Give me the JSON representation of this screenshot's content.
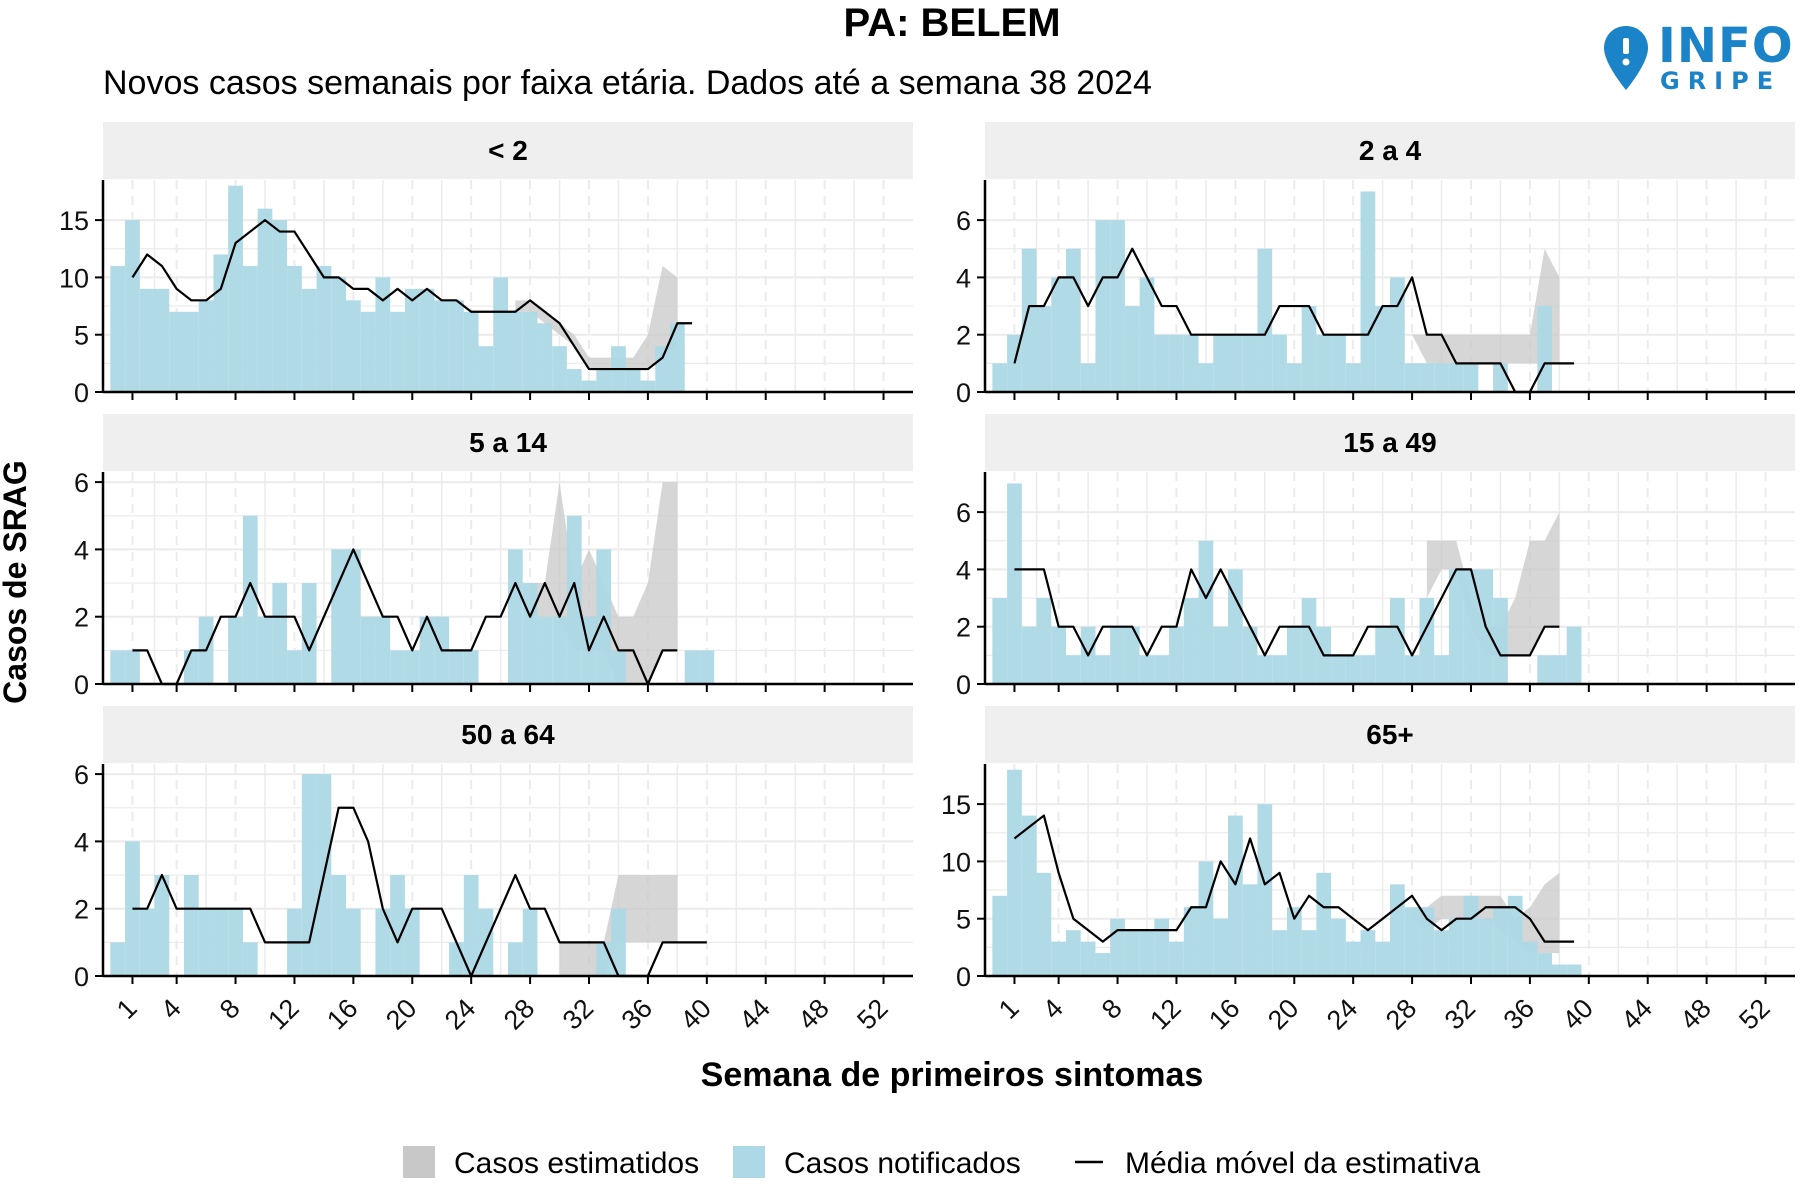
{
  "title": "PA: BELEM",
  "subtitle": "Novos casos semanais por faixa etária. Dados até a semana 38 2024",
  "logo": {
    "main": "INFO",
    "sub": "GRIPE",
    "color": "#1b84c9",
    "icon": "map-pin-icon"
  },
  "colors": {
    "notified": "#add8e6",
    "estimated": "#c8c8c8",
    "line": "#000000",
    "strip": "#efefef",
    "grid": "#ebebeb"
  },
  "chart_data": {
    "type": "bar",
    "xlabel": "Semana de primeiros sintomas",
    "ylabel": "Casos de SRAG",
    "xlim": [
      -1,
      54
    ],
    "x_ticks": [
      1,
      4,
      8,
      12,
      16,
      20,
      24,
      28,
      32,
      36,
      40,
      44,
      48,
      52
    ],
    "legend": {
      "position": "bottom",
      "items": [
        {
          "key": "estimated",
          "label": "Casos estimatidos"
        },
        {
          "key": "notified",
          "label": "Casos notificados"
        },
        {
          "key": "moving_average",
          "label": "Média móvel da estimativa"
        }
      ]
    },
    "panels": [
      {
        "label": "< 2",
        "ylim": [
          0,
          18.5
        ],
        "y_ticks": [
          0,
          5,
          10,
          15
        ],
        "notified": [
          11,
          15,
          9,
          9,
          7,
          7,
          8,
          12,
          18,
          11,
          16,
          15,
          11,
          9,
          11,
          10,
          8,
          7,
          10,
          7,
          9,
          9,
          8,
          8,
          7,
          4,
          10,
          7,
          7,
          6,
          4,
          2,
          1,
          2,
          4,
          2,
          1,
          4,
          6,
          0
        ],
        "moving_average": [
          10,
          12,
          11,
          9,
          8,
          8,
          9,
          13,
          14,
          15,
          14,
          14,
          12,
          10,
          10,
          9,
          9,
          8,
          9,
          8,
          9,
          8,
          8,
          7,
          7,
          7,
          7,
          8,
          7,
          6,
          4,
          2,
          2,
          2,
          2,
          2,
          3,
          6,
          6
        ],
        "estimate_band": {
          "weeks": [
            27,
            28,
            29,
            30,
            31,
            32,
            33,
            34,
            35,
            36,
            37,
            38
          ],
          "lower": [
            7,
            7,
            6,
            5,
            4,
            2,
            2,
            2,
            2,
            2,
            3,
            4
          ],
          "upper": [
            8,
            8,
            7,
            6,
            5,
            3,
            3,
            3,
            3,
            5,
            11,
            10
          ]
        }
      },
      {
        "label": "2 a 4",
        "ylim": [
          0,
          7.4
        ],
        "y_ticks": [
          0,
          2,
          4,
          6
        ],
        "notified": [
          1,
          2,
          5,
          3,
          4,
          5,
          1,
          6,
          6,
          3,
          4,
          2,
          2,
          2,
          1,
          2,
          2,
          2,
          5,
          2,
          1,
          3,
          2,
          2,
          1,
          7,
          3,
          4,
          1,
          1,
          1,
          1,
          1,
          0,
          1,
          0,
          0,
          3,
          0
        ],
        "moving_average": [
          1,
          3,
          3,
          4,
          4,
          3,
          4,
          4,
          5,
          4,
          3,
          3,
          2,
          2,
          2,
          2,
          2,
          2,
          3,
          3,
          3,
          2,
          2,
          2,
          2,
          3,
          3,
          4,
          2,
          2,
          1,
          1,
          1,
          1,
          0,
          0,
          1,
          1,
          1
        ],
        "estimate_band": {
          "weeks": [
            28,
            29,
            30,
            31,
            32,
            33,
            34,
            35,
            36,
            37,
            38
          ],
          "lower": [
            2,
            1,
            1,
            1,
            1,
            1,
            1,
            1,
            1,
            1,
            1
          ],
          "upper": [
            2,
            2,
            2,
            2,
            2,
            2,
            2,
            2,
            2,
            5,
            4
          ]
        }
      },
      {
        "label": "5 a 14",
        "ylim": [
          0,
          6.3
        ],
        "y_ticks": [
          0,
          2,
          4,
          6
        ],
        "notified": [
          1,
          1,
          0,
          0,
          0,
          1,
          2,
          0,
          2,
          5,
          2,
          3,
          1,
          3,
          0,
          4,
          4,
          2,
          2,
          1,
          1,
          2,
          2,
          1,
          1,
          0,
          0,
          4,
          3,
          2,
          2,
          5,
          2,
          4,
          1,
          0,
          0,
          0,
          0,
          1,
          1
        ],
        "moving_average": [
          1,
          1,
          0,
          0,
          1,
          1,
          2,
          2,
          3,
          2,
          2,
          2,
          1,
          2,
          3,
          4,
          3,
          2,
          2,
          1,
          2,
          1,
          1,
          1,
          2,
          2,
          3,
          2,
          3,
          2,
          3,
          1,
          2,
          1,
          1,
          0,
          1,
          1
        ],
        "estimate_band": {
          "weeks": [
            28,
            29,
            30,
            31,
            32,
            33,
            34,
            35,
            36,
            37,
            38
          ],
          "lower": [
            2,
            2,
            2,
            1,
            1,
            1,
            0,
            0,
            0,
            1,
            1
          ],
          "upper": [
            3,
            3,
            6,
            3,
            4,
            3,
            2,
            2,
            3,
            6,
            6
          ]
        }
      },
      {
        "label": "15 a 49",
        "ylim": [
          0,
          7.4
        ],
        "y_ticks": [
          0,
          2,
          4,
          6
        ],
        "notified": [
          3,
          7,
          2,
          3,
          2,
          1,
          2,
          1,
          2,
          2,
          1,
          1,
          2,
          3,
          5,
          2,
          4,
          2,
          1,
          1,
          2,
          3,
          2,
          1,
          1,
          1,
          2,
          3,
          1,
          3,
          1,
          4,
          4,
          4,
          3,
          0,
          0,
          1,
          1,
          2,
          0
        ],
        "moving_average": [
          4,
          4,
          4,
          2,
          2,
          1,
          2,
          2,
          2,
          1,
          2,
          2,
          4,
          3,
          4,
          3,
          2,
          1,
          2,
          2,
          2,
          1,
          1,
          1,
          2,
          2,
          2,
          1,
          2,
          3,
          4,
          4,
          2,
          1,
          1,
          1,
          2,
          2
        ],
        "estimate_band": {
          "weeks": [
            29,
            30,
            31,
            32,
            33,
            34,
            35,
            36,
            37,
            38
          ],
          "lower": [
            3,
            4,
            4,
            2,
            1,
            1,
            1,
            1,
            2,
            2
          ],
          "upper": [
            5,
            5,
            5,
            3,
            2,
            2,
            3,
            5,
            5,
            6
          ]
        }
      },
      {
        "label": "50 a 64",
        "ylim": [
          0,
          6.3
        ],
        "y_ticks": [
          0,
          2,
          4,
          6
        ],
        "notified": [
          1,
          4,
          2,
          3,
          0,
          3,
          2,
          2,
          2,
          1,
          0,
          0,
          2,
          6,
          6,
          3,
          2,
          0,
          2,
          3,
          2,
          0,
          0,
          1,
          3,
          2,
          0,
          1,
          2,
          0,
          0,
          0,
          0,
          1,
          2,
          0,
          0,
          0,
          0
        ],
        "moving_average": [
          2,
          2,
          3,
          2,
          2,
          2,
          2,
          2,
          2,
          1,
          1,
          1,
          1,
          3,
          5,
          5,
          4,
          2,
          1,
          2,
          2,
          2,
          1,
          0,
          1,
          2,
          3,
          2,
          2,
          1,
          1,
          1,
          1,
          0,
          0,
          0,
          1,
          1,
          1,
          1
        ],
        "estimate_band": {
          "weeks": [
            30,
            31,
            32,
            33,
            34,
            35,
            36,
            37,
            38
          ],
          "lower": [
            0,
            0,
            0,
            0,
            1,
            1,
            1,
            1,
            1
          ],
          "upper": [
            1,
            1,
            1,
            1,
            3,
            3,
            3,
            3,
            3
          ]
        }
      },
      {
        "label": "65+",
        "ylim": [
          0,
          18.5
        ],
        "y_ticks": [
          0,
          5,
          10,
          15
        ],
        "notified": [
          7,
          18,
          14,
          9,
          3,
          4,
          3,
          2,
          5,
          4,
          4,
          5,
          3,
          6,
          10,
          5,
          14,
          8,
          15,
          4,
          6,
          4,
          9,
          5,
          3,
          4,
          3,
          8,
          6,
          6,
          4,
          5,
          7,
          5,
          6,
          7,
          3,
          2,
          1,
          1
        ],
        "moving_average": [
          12,
          13,
          14,
          9,
          5,
          4,
          3,
          4,
          4,
          4,
          4,
          4,
          6,
          6,
          10,
          8,
          12,
          8,
          9,
          5,
          7,
          6,
          6,
          5,
          4,
          5,
          6,
          7,
          5,
          4,
          5,
          5,
          6,
          6,
          6,
          5,
          3,
          3,
          3
        ],
        "estimate_band": {
          "weeks": [
            28,
            29,
            30,
            31,
            32,
            33,
            34,
            35,
            36,
            37,
            38
          ],
          "lower": [
            5,
            4,
            5,
            5,
            5,
            5,
            4,
            3,
            2,
            2,
            2
          ],
          "upper": [
            6,
            6,
            7,
            7,
            7,
            7,
            7,
            5,
            6,
            8,
            9
          ]
        }
      }
    ]
  }
}
